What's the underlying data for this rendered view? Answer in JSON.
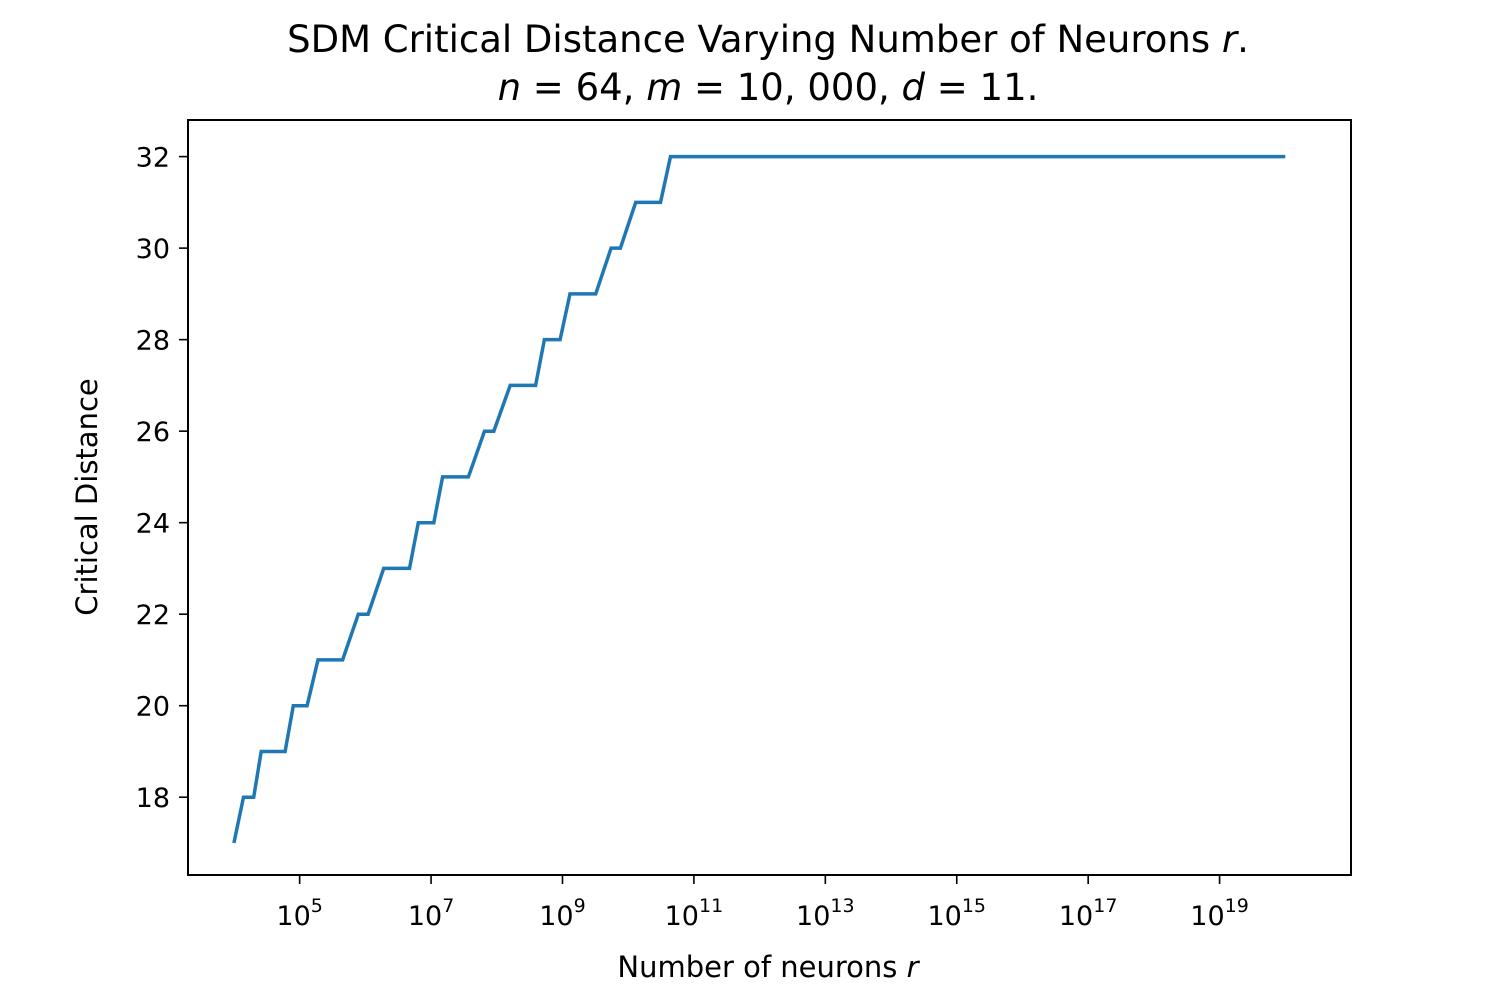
{
  "chart_data": {
    "type": "line",
    "title": "SDM Critical Distance Varying Number of Neurons r.",
    "title_parts": [
      {
        "text": "SDM Critical Distance Varying Number of Neurons ",
        "italic": false
      },
      {
        "text": "r",
        "italic": true
      },
      {
        "text": ".",
        "italic": false
      }
    ],
    "subtitle": "n = 64, m = 10, 000, d = 11.",
    "subtitle_parts": [
      {
        "text": "n",
        "italic": true
      },
      {
        "text": " = 64, ",
        "italic": false
      },
      {
        "text": "m",
        "italic": true
      },
      {
        "text": " = 10, 000, ",
        "italic": false
      },
      {
        "text": "d",
        "italic": true
      },
      {
        "text": " = 11.",
        "italic": false
      }
    ],
    "xlabel": "Number of neurons r",
    "xlabel_parts": [
      {
        "text": "Number of neurons ",
        "italic": false
      },
      {
        "text": "r",
        "italic": true
      }
    ],
    "ylabel": "Critical Distance",
    "xscale": "log",
    "xlim": [
      2000,
      1e+21
    ],
    "ylim": [
      16.3,
      32.8
    ],
    "grid": false,
    "legend": "none",
    "x_ticks": [
      {
        "base": "10",
        "exp": "5",
        "value": 100000.0
      },
      {
        "base": "10",
        "exp": "7",
        "value": 10000000.0
      },
      {
        "base": "10",
        "exp": "9",
        "value": 1000000000.0
      },
      {
        "base": "10",
        "exp": "11",
        "value": 100000000000.0
      },
      {
        "base": "10",
        "exp": "13",
        "value": 10000000000000.0
      },
      {
        "base": "10",
        "exp": "15",
        "value": 1000000000000000.0
      },
      {
        "base": "10",
        "exp": "17",
        "value": 1e+17
      },
      {
        "base": "10",
        "exp": "19",
        "value": 1e+19
      }
    ],
    "y_ticks": [
      18,
      20,
      22,
      24,
      26,
      28,
      30,
      32
    ],
    "series": [
      {
        "color": "#1f77b4",
        "x": [
          10000,
          14000,
          20000,
          26000,
          35000,
          60000,
          80000,
          130000,
          190000,
          330000,
          450000,
          780000,
          1100000,
          1900000,
          2600000,
          4700000,
          6400000,
          11000000,
          15000000,
          27000000,
          37000000,
          65000000,
          90000000,
          160000000,
          220000000,
          390000000,
          530000000,
          920000000,
          1300000000,
          2300000000,
          3200000000,
          5500000000,
          7600000000,
          13000000000,
          18000000000,
          31000000000,
          44000000000,
          75000000000,
          110000000000,
          180000000000,
          260000000000,
          1e+20
        ],
        "y": [
          17,
          18,
          18,
          19,
          19,
          19,
          20,
          20,
          21,
          21,
          21,
          22,
          22,
          23,
          23,
          23,
          24,
          24,
          25,
          25,
          25,
          26,
          26,
          27,
          27,
          27,
          28,
          28,
          29,
          29,
          29,
          30,
          30,
          31,
          31,
          31,
          32,
          32,
          32,
          32,
          32,
          32
        ]
      }
    ]
  }
}
